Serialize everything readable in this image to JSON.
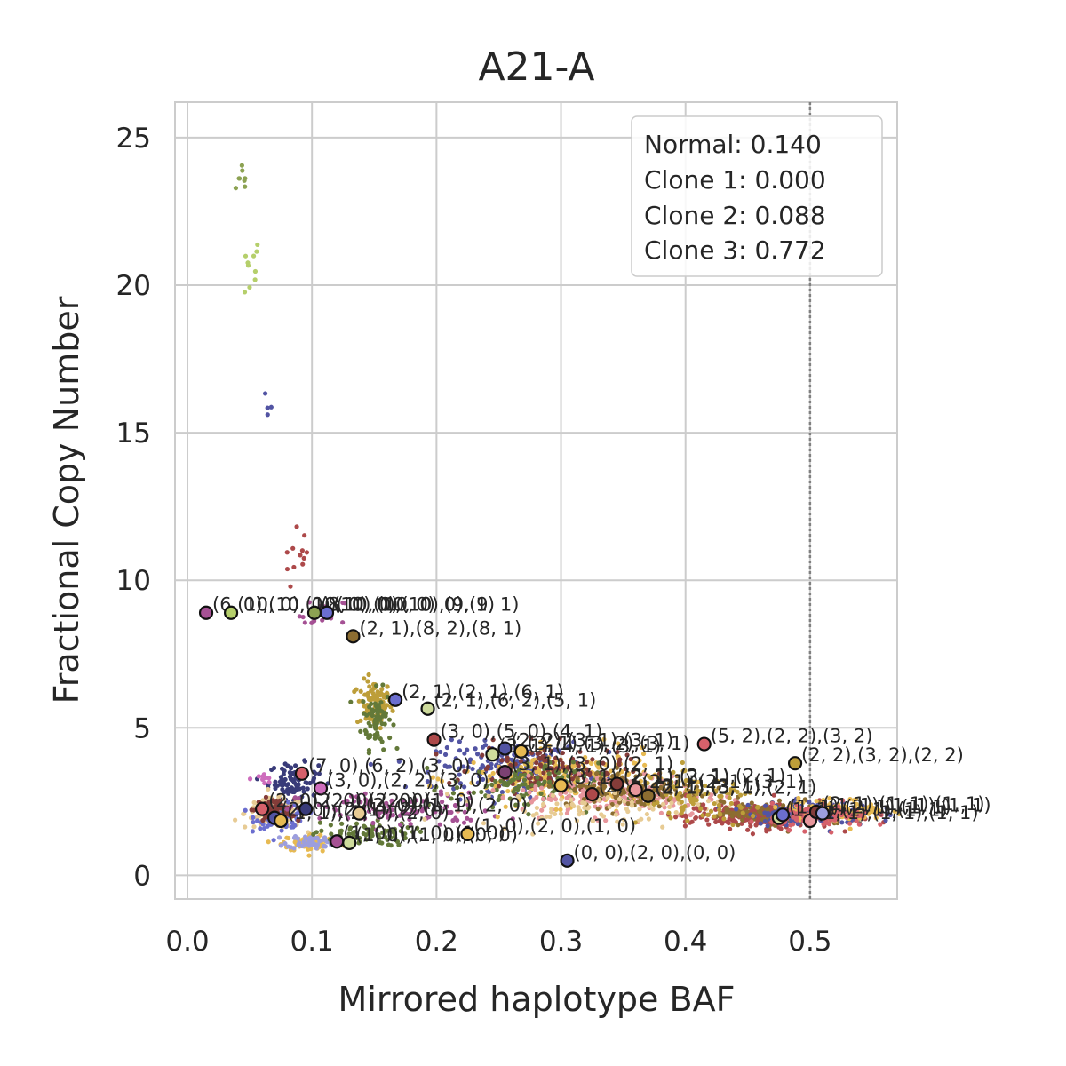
{
  "chart_data": {
    "type": "scatter",
    "title": "A21-A",
    "xlabel": "Mirrored haplotype BAF",
    "ylabel": "Fractional Copy Number",
    "xlim": [
      -0.01,
      0.57
    ],
    "ylim": [
      -0.8,
      26.2
    ],
    "xticks": [
      {
        "value": 0.0,
        "label": "0.0"
      },
      {
        "value": 0.1,
        "label": "0.1"
      },
      {
        "value": 0.2,
        "label": "0.2"
      },
      {
        "value": 0.3,
        "label": "0.3"
      },
      {
        "value": 0.4,
        "label": "0.4"
      },
      {
        "value": 0.5,
        "label": "0.5"
      }
    ],
    "yticks": [
      {
        "value": 0,
        "label": "0"
      },
      {
        "value": 5,
        "label": "5"
      },
      {
        "value": 10,
        "label": "10"
      },
      {
        "value": 15,
        "label": "15"
      },
      {
        "value": 20,
        "label": "20"
      },
      {
        "value": 25,
        "label": "25"
      }
    ],
    "grid": true,
    "reference_line": {
      "x": 0.5,
      "style": "dotted",
      "color": "#808080"
    },
    "legend": {
      "position": "top-right",
      "entries": [
        "Normal: 0.140",
        "Clone 1: 0.000",
        "Clone 2: 0.088",
        "Clone 3: 0.772"
      ]
    },
    "palette": [
      "#b5cf6b",
      "#637939",
      "#8c6d31",
      "#bd9e39",
      "#e7ba52",
      "#e7cb94",
      "#843c39",
      "#ad494a",
      "#d6616b",
      "#e7969c",
      "#7b4173",
      "#a55194",
      "#ce6dbd",
      "#393b79",
      "#5254a3",
      "#6b6ecf",
      "#9c9ede",
      "#cedb9c",
      "#8ca252"
    ],
    "point_groups": [
      {
        "x": 0.045,
        "y": 23.5,
        "sx": 0.003,
        "sy": 0.4,
        "n": 8,
        "color": "#8ca252"
      },
      {
        "x": 0.05,
        "y": 20.6,
        "sx": 0.005,
        "sy": 0.6,
        "n": 10,
        "color": "#b5cf6b"
      },
      {
        "x": 0.065,
        "y": 16.4,
        "sx": 0.002,
        "sy": 0.3,
        "n": 4,
        "color": "#5254a3"
      },
      {
        "x": 0.09,
        "y": 10.6,
        "sx": 0.006,
        "sy": 0.6,
        "n": 12,
        "color": "#ad494a"
      },
      {
        "x": 0.11,
        "y": 8.8,
        "sx": 0.01,
        "sy": 0.3,
        "n": 14,
        "color": "#a55194"
      },
      {
        "x": 0.15,
        "y": 5.8,
        "sx": 0.007,
        "sy": 0.4,
        "n": 90,
        "color": "#bd9e39"
      },
      {
        "x": 0.152,
        "y": 5.3,
        "sx": 0.006,
        "sy": 0.5,
        "n": 70,
        "color": "#637939"
      },
      {
        "x": 0.085,
        "y": 3.2,
        "sx": 0.01,
        "sy": 0.3,
        "n": 90,
        "color": "#393b79"
      },
      {
        "x": 0.06,
        "y": 3.3,
        "sx": 0.006,
        "sy": 0.1,
        "n": 10,
        "color": "#ce6dbd"
      },
      {
        "x": 0.07,
        "y": 2.1,
        "sx": 0.012,
        "sy": 0.25,
        "n": 130,
        "color": "#e7cb94"
      },
      {
        "x": 0.075,
        "y": 2.0,
        "sx": 0.01,
        "sy": 0.2,
        "n": 90,
        "color": "#6b6ecf"
      },
      {
        "x": 0.07,
        "y": 2.2,
        "sx": 0.008,
        "sy": 0.2,
        "n": 70,
        "color": "#843c39"
      },
      {
        "x": 0.1,
        "y": 1.1,
        "sx": 0.012,
        "sy": 0.15,
        "n": 90,
        "color": "#e7ba52"
      },
      {
        "x": 0.1,
        "y": 1.15,
        "sx": 0.01,
        "sy": 0.12,
        "n": 60,
        "color": "#9c9ede"
      },
      {
        "x": 0.14,
        "y": 1.4,
        "sx": 0.02,
        "sy": 0.2,
        "n": 70,
        "color": "#637939"
      },
      {
        "x": 0.17,
        "y": 2.2,
        "sx": 0.04,
        "sy": 0.3,
        "n": 100,
        "color": "#a55194"
      },
      {
        "x": 0.26,
        "y": 3.7,
        "sx": 0.03,
        "sy": 0.4,
        "n": 180,
        "color": "#5254a3"
      },
      {
        "x": 0.3,
        "y": 3.3,
        "sx": 0.04,
        "sy": 0.45,
        "n": 220,
        "color": "#e7ba52"
      },
      {
        "x": 0.29,
        "y": 3.6,
        "sx": 0.03,
        "sy": 0.4,
        "n": 140,
        "color": "#843c39"
      },
      {
        "x": 0.27,
        "y": 3.0,
        "sx": 0.03,
        "sy": 0.4,
        "n": 120,
        "color": "#637939"
      },
      {
        "x": 0.35,
        "y": 2.7,
        "sx": 0.04,
        "sy": 0.35,
        "n": 200,
        "color": "#e7969c"
      },
      {
        "x": 0.36,
        "y": 2.9,
        "sx": 0.03,
        "sy": 0.3,
        "n": 140,
        "color": "#8c6d31"
      },
      {
        "x": 0.33,
        "y": 2.3,
        "sx": 0.05,
        "sy": 0.3,
        "n": 90,
        "color": "#e7cb94"
      },
      {
        "x": 0.46,
        "y": 2.0,
        "sx": 0.03,
        "sy": 0.2,
        "n": 280,
        "color": "#ad494a"
      },
      {
        "x": 0.48,
        "y": 2.1,
        "sx": 0.025,
        "sy": 0.2,
        "n": 160,
        "color": "#8c6d31"
      },
      {
        "x": 0.5,
        "y": 2.1,
        "sx": 0.025,
        "sy": 0.2,
        "n": 150,
        "color": "#5254a3"
      },
      {
        "x": 0.52,
        "y": 2.2,
        "sx": 0.02,
        "sy": 0.2,
        "n": 110,
        "color": "#e7ba52"
      },
      {
        "x": 0.51,
        "y": 2.0,
        "sx": 0.02,
        "sy": 0.2,
        "n": 110,
        "color": "#d6616b"
      },
      {
        "x": 0.41,
        "y": 2.5,
        "sx": 0.03,
        "sy": 0.4,
        "n": 90,
        "color": "#bd9e39"
      }
    ],
    "clusters": [
      {
        "x": 0.015,
        "y": 8.9,
        "color": "#a55194",
        "label": "(6, 0),(10, 0),(10, 0)"
      },
      {
        "x": 0.035,
        "y": 8.9,
        "color": "#b5cf6b",
        "label": "(10, 0),(10, 0),(10, 0)"
      },
      {
        "x": 0.102,
        "y": 8.9,
        "color": "#8ca252",
        "label": "(8, 0),(10, 0),(9, 1)"
      },
      {
        "x": 0.112,
        "y": 8.9,
        "color": "#6b6ecf",
        "label": "(10, 0),(10, 0),(9, 1)"
      },
      {
        "x": 0.133,
        "y": 8.1,
        "color": "#8c6d31",
        "label": "(2, 1),(8, 2),(8, 1)"
      },
      {
        "x": 0.167,
        "y": 5.95,
        "color": "#6b6ecf",
        "label": "(2, 1),(2, 1),(6, 1)"
      },
      {
        "x": 0.193,
        "y": 5.65,
        "color": "#cedb9c",
        "label": "(2, 1),(6, 2),(5, 1)"
      },
      {
        "x": 0.198,
        "y": 4.6,
        "color": "#ad494a",
        "label": "(3, 0),(5, 0),(4, 1)"
      },
      {
        "x": 0.245,
        "y": 4.1,
        "color": "#cedb9c",
        "label": "(3, 1),(4, 1),(3, 1)"
      },
      {
        "x": 0.255,
        "y": 4.3,
        "color": "#5254a3",
        "label": "(2, 2),(3, 1),(3, 1)"
      },
      {
        "x": 0.268,
        "y": 4.2,
        "color": "#e7ba52",
        "label": "(3, 1),(3, 2),(3, 1)"
      },
      {
        "x": 0.415,
        "y": 4.45,
        "color": "#d6616b",
        "label": "(5, 2),(2, 2),(3, 2)"
      },
      {
        "x": 0.488,
        "y": 3.8,
        "color": "#bd9e39",
        "label": "(2, 2),(3, 2),(2, 2)"
      },
      {
        "x": 0.092,
        "y": 3.45,
        "color": "#d6616b",
        "label": "(7, 0),(6, 2),(3, 0)"
      },
      {
        "x": 0.107,
        "y": 2.95,
        "color": "#ce6dbd",
        "label": "(3, 0),(2, 2),(3, 0)"
      },
      {
        "x": 0.255,
        "y": 3.5,
        "color": "#7b4173",
        "label": "(3, 1),(3, 0),(2, 1)"
      },
      {
        "x": 0.3,
        "y": 3.05,
        "color": "#e7ba52",
        "label": "(3, 1),(2, 1),(3, 1)"
      },
      {
        "x": 0.325,
        "y": 2.75,
        "color": "#ad494a",
        "label": "(2, 1),(3, 1),(3, 1)"
      },
      {
        "x": 0.345,
        "y": 3.1,
        "color": "#843c39",
        "label": "(2, 1),(2, 1),(2, 1)"
      },
      {
        "x": 0.36,
        "y": 2.9,
        "color": "#e7969c",
        "label": "(2, 1),(2, 1),(3, 1)"
      },
      {
        "x": 0.37,
        "y": 2.7,
        "color": "#8c6d31",
        "label": "(2, 1),(3, 1),(2, 1)"
      },
      {
        "x": 0.06,
        "y": 2.25,
        "color": "#d6616b",
        "label": "(2, 0),(2, 0),(2, 0)"
      },
      {
        "x": 0.07,
        "y": 1.95,
        "color": "#5254a3",
        "label": "(2, 0),(2, 1),(2, 0)"
      },
      {
        "x": 0.075,
        "y": 1.85,
        "color": "#e7ba52",
        "label": "(1, 1),(2, 0),(2, 0)"
      },
      {
        "x": 0.095,
        "y": 2.25,
        "color": "#393b79",
        "label": "(2, 0),(2, 0),(1, 0)"
      },
      {
        "x": 0.138,
        "y": 2.1,
        "color": "#e7cb94",
        "label": "(2, 0),(1, 1),(2, 0)"
      },
      {
        "x": 0.12,
        "y": 1.15,
        "color": "#a55194",
        "label": "(1, 0),(1, 0),(1, 0)"
      },
      {
        "x": 0.13,
        "y": 1.1,
        "color": "#cedb9c",
        "label": "(1, 0),(1, 0),(0, 0)"
      },
      {
        "x": 0.225,
        "y": 1.4,
        "color": "#e7ba52",
        "label": "(1, 0),(2, 0),(1, 0)"
      },
      {
        "x": 0.305,
        "y": 0.5,
        "color": "#5254a3",
        "label": "(0, 0),(2, 0),(0, 0)"
      },
      {
        "x": 0.475,
        "y": 1.95,
        "color": "#cedb9c",
        "label": "(1, 1),(1, 1),(1, 1)"
      },
      {
        "x": 0.478,
        "y": 2.05,
        "color": "#6b6ecf",
        "label": "(1, 1),(2, 1),(1, 1)"
      },
      {
        "x": 0.5,
        "y": 1.85,
        "color": "#e7969c",
        "label": "(1, 1),(1, 1),(1, 1)"
      },
      {
        "x": 0.505,
        "y": 2.15,
        "color": "#843c39",
        "label": "(2, 1),(1, 1),(1, 1)"
      },
      {
        "x": 0.51,
        "y": 2.1,
        "color": "#9c9ede",
        "label": "(1, 1),(1, 1),(1, 1)"
      }
    ]
  }
}
